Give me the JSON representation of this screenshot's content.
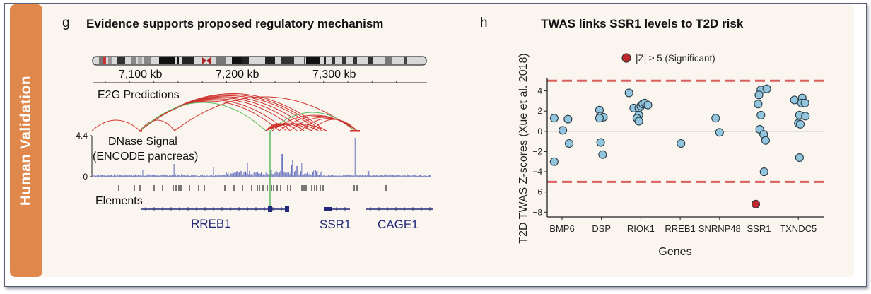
{
  "sidebar": {
    "label": "Human Validation",
    "color": "#e0874c"
  },
  "panel_g": {
    "letter": "g",
    "title": "Evidence supports proposed regulatory mechanism",
    "coordinate_ticks": [
      "7,100 kb",
      "7,200 kb",
      "7,300 kb"
    ],
    "e2g_label": "E2G Predictions",
    "dnase_label_line1": "DNase Signal",
    "dnase_label_line2": "(ENCODE pancreas)",
    "dnase_ymax": "4.4",
    "dnase_ymin": "0",
    "elements_label": "Elements",
    "genes": [
      "RREB1",
      "SSR1",
      "CAGE1"
    ],
    "colors": {
      "arc_red": "#d0312d",
      "arc_green": "#5cb85c",
      "signal": "#6a74c0",
      "gene": "#22287a"
    }
  },
  "chart_data": {
    "type": "scatter",
    "panel_letter": "h",
    "title": "TWAS links SSR1 levels to T2D risk",
    "xlabel": "Genes",
    "ylabel": "T2D TWAS Z-scores (Xue et al. 2018)",
    "categories": [
      "BMP6",
      "DSP",
      "RIOK1",
      "RREB1",
      "SNRNP48",
      "SSR1",
      "TXNDC5"
    ],
    "yticks": [
      "4",
      "2",
      "0",
      "−2",
      "−4",
      "−6",
      "−8"
    ],
    "ytick_values": [
      4,
      2,
      0,
      -2,
      -4,
      -6,
      -8
    ],
    "ylim": [
      -8.4,
      5.3
    ],
    "thresholds": [
      5,
      -5
    ],
    "legend": {
      "label": "|Z| ≥ 5 (Significant)",
      "placement": "top-center",
      "color": "#c0282d"
    },
    "colors": {
      "point": "#92c5de",
      "significant": "#c0282d",
      "threshold": "#d9605c"
    },
    "series": [
      {
        "gene": "BMP6",
        "points": [
          {
            "dx": -0.2,
            "z": 1.3
          },
          {
            "dx": 0.15,
            "z": 1.2
          },
          {
            "dx": 0.02,
            "z": 0.1
          },
          {
            "dx": 0.18,
            "z": -1.2
          },
          {
            "dx": -0.2,
            "z": -3.0
          }
        ]
      },
      {
        "gene": "DSP",
        "points": [
          {
            "dx": -0.05,
            "z": 2.1
          },
          {
            "dx": -0.03,
            "z": 1.5
          },
          {
            "dx": 0.05,
            "z": 1.4
          },
          {
            "dx": -0.05,
            "z": 1.3
          },
          {
            "dx": -0.02,
            "z": -1.1
          },
          {
            "dx": 0.03,
            "z": -2.3
          }
        ]
      },
      {
        "gene": "RIOK1",
        "points": [
          {
            "dx": -0.3,
            "z": 3.8
          },
          {
            "dx": -0.18,
            "z": 2.3
          },
          {
            "dx": -0.05,
            "z": 2.3
          },
          {
            "dx": 0.0,
            "z": 2.5
          },
          {
            "dx": 0.05,
            "z": 2.7
          },
          {
            "dx": 0.1,
            "z": 2.8
          },
          {
            "dx": 0.18,
            "z": 2.6
          },
          {
            "dx": -0.05,
            "z": 1.6
          },
          {
            "dx": -0.1,
            "z": 1.3
          },
          {
            "dx": -0.05,
            "z": 1.0
          }
        ]
      },
      {
        "gene": "RREB1",
        "points": [
          {
            "dx": 0.02,
            "z": -1.2
          }
        ]
      },
      {
        "gene": "SNRNP48",
        "points": [
          {
            "dx": -0.1,
            "z": 1.3
          },
          {
            "dx": -0.0,
            "z": -0.1
          }
        ]
      },
      {
        "gene": "SSR1",
        "points": [
          {
            "dx": 0.05,
            "z": 4.1
          },
          {
            "dx": 0.2,
            "z": 4.2
          },
          {
            "dx": 0.0,
            "z": 3.6
          },
          {
            "dx": -0.02,
            "z": 2.7
          },
          {
            "dx": 0.05,
            "z": 1.6
          },
          {
            "dx": 0.02,
            "z": 0.2
          },
          {
            "dx": 0.12,
            "z": -0.3
          },
          {
            "dx": 0.17,
            "z": -0.9
          },
          {
            "dx": 0.13,
            "z": -4.0
          },
          {
            "dx": -0.08,
            "z": -7.2,
            "significant": true
          }
        ]
      },
      {
        "gene": "TXNDC5",
        "points": [
          {
            "dx": -0.1,
            "z": 3.1
          },
          {
            "dx": 0.1,
            "z": 3.3
          },
          {
            "dx": 0.08,
            "z": 2.8
          },
          {
            "dx": 0.17,
            "z": 2.8
          },
          {
            "dx": 0.03,
            "z": 1.6
          },
          {
            "dx": 0.18,
            "z": 1.5
          },
          {
            "dx": 0.0,
            "z": 0.8
          },
          {
            "dx": 0.05,
            "z": 0.7
          },
          {
            "dx": 0.03,
            "z": -2.6
          }
        ]
      }
    ]
  }
}
